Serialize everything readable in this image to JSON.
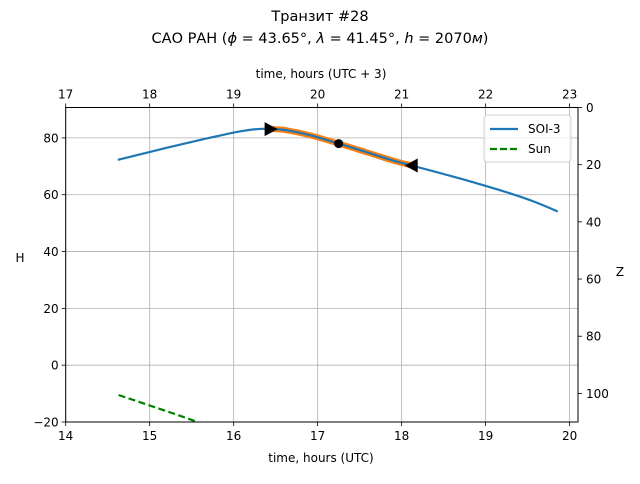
{
  "chart_data": {
    "type": "line",
    "title": "Транзит #28",
    "subtitle": {
      "prefix": "САО РАН (",
      "phi_sym": "ϕ",
      "phi_val": " = 43.65°, ",
      "lambda_sym": "λ",
      "lambda_val": " = 41.45°, ",
      "h_sym": "h",
      "h_val": " = 2070",
      "h_unit": "м",
      "suffix": ")"
    },
    "xlabel": "time, hours (UTC)",
    "xlabel_top": "time, hours (UTC + 3)",
    "ylabel": "H",
    "ylabel_right": "Z",
    "xlim": [
      14,
      20.1
    ],
    "ylim": [
      -20,
      90.7
    ],
    "xlim_top": [
      17,
      23.1
    ],
    "ylim_right": [
      0,
      110
    ],
    "x_ticks": [
      "14",
      "15",
      "16",
      "17",
      "18",
      "19",
      "20"
    ],
    "x_ticks_top": [
      "17",
      "18",
      "19",
      "20",
      "21",
      "22",
      "23"
    ],
    "y_ticks": [
      "−20",
      "0",
      "20",
      "40",
      "60",
      "80"
    ],
    "y_ticks_right": [
      "0",
      "20",
      "40",
      "60",
      "80",
      "100"
    ],
    "grid": true,
    "legend_position": "upper-right",
    "series": [
      {
        "name": "SOI-3",
        "color": "#1f77b4",
        "style": "solid",
        "x": [
          14.62,
          14.9,
          15.2,
          15.5,
          15.8,
          16.1,
          16.34,
          16.6,
          16.9,
          17.25,
          17.6,
          17.9,
          18.12,
          18.5,
          18.9,
          19.3,
          19.6,
          19.86
        ],
        "y": [
          72.3,
          74.3,
          76.5,
          78.6,
          80.6,
          82.4,
          83.2,
          82.8,
          81.0,
          78.0,
          74.8,
          72.0,
          70.3,
          67.3,
          64.0,
          60.4,
          57.3,
          54.1
        ]
      },
      {
        "name": "Sun",
        "color": "#008000",
        "style": "dashed",
        "x": [
          14.63,
          15.0,
          15.3,
          15.57
        ],
        "y": [
          -10.5,
          -14.2,
          -17.2,
          -20.0
        ]
      }
    ],
    "transit_segment": {
      "color": "#ff7f0e",
      "x": [
        16.44,
        16.6,
        16.9,
        17.25,
        17.6,
        17.9,
        18.12
      ],
      "y": [
        83.1,
        82.8,
        81.0,
        78.0,
        74.8,
        72.0,
        70.3
      ]
    },
    "markers": [
      {
        "name": "transit-start",
        "shape": "triangle-right",
        "x": 16.44,
        "y": 83.1
      },
      {
        "name": "transit-middle",
        "shape": "circle",
        "x": 17.25,
        "y": 78.0
      },
      {
        "name": "transit-end",
        "shape": "triangle-left",
        "x": 18.12,
        "y": 70.3
      }
    ]
  }
}
